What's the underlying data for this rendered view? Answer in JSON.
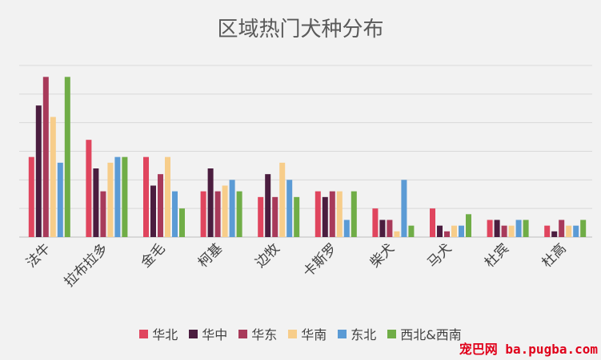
{
  "chart_data": {
    "type": "bar",
    "title": "区域热门犬种分布",
    "xlabel": "",
    "ylabel": "",
    "categories": [
      "法牛",
      "拉布拉多",
      "金毛",
      "柯基",
      "边牧",
      "卡斯罗",
      "柴犬",
      "马犬",
      "杜宾",
      "杜高"
    ],
    "series": [
      {
        "name": "华北",
        "color": "#e0455e",
        "values": [
          14,
          17,
          14,
          8,
          7,
          8,
          5,
          5,
          3,
          2
        ]
      },
      {
        "name": "华中",
        "color": "#4b1d3f",
        "values": [
          23,
          12,
          9,
          12,
          11,
          7,
          3,
          2,
          3,
          1
        ]
      },
      {
        "name": "华东",
        "color": "#a83a5a",
        "values": [
          28,
          8,
          11,
          8,
          7,
          8,
          3,
          1,
          2,
          3
        ]
      },
      {
        "name": "华南",
        "color": "#f7cd8a",
        "values": [
          21,
          13,
          14,
          9,
          13,
          8,
          1,
          2,
          2,
          2
        ]
      },
      {
        "name": "东北",
        "color": "#5b9bd5",
        "values": [
          13,
          14,
          8,
          10,
          10,
          3,
          10,
          2,
          3,
          2
        ]
      },
      {
        "name": "西北&西南",
        "color": "#70ad47",
        "values": [
          28,
          14,
          5,
          8,
          7,
          8,
          2,
          4,
          3,
          3
        ]
      }
    ],
    "ylim": [
      0,
      30
    ],
    "grid": true,
    "legend_position": "bottom"
  },
  "watermark": "宠巴网 ba.pugba.com"
}
